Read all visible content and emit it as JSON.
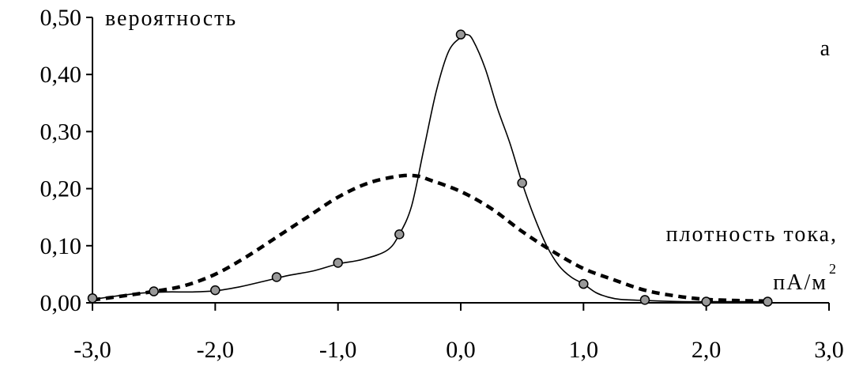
{
  "chart_data": {
    "type": "line",
    "ylabel": "вероятность",
    "xlabel_line1": "плотность тока,",
    "xlabel_unit": "пА/м",
    "xlabel_unit_sup": "2",
    "panel_label": "а",
    "xlim": [
      -3.0,
      3.0
    ],
    "ylim": [
      0.0,
      0.5
    ],
    "x_ticks": [
      -3.0,
      -2.0,
      -1.0,
      0.0,
      1.0,
      2.0,
      3.0
    ],
    "x_tick_labels": [
      "-3,0",
      "-2,0",
      "-1,0",
      "0,0",
      "1,0",
      "2,0",
      "3,0"
    ],
    "y_ticks": [
      0.0,
      0.1,
      0.2,
      0.3,
      0.4,
      0.5
    ],
    "y_tick_labels": [
      "0,00",
      "0,10",
      "0,20",
      "0,30",
      "0,40",
      "0,50"
    ],
    "grid": false,
    "series": [
      {
        "style": "solid-with-markers",
        "color": "#000000",
        "marker_color": "#999999",
        "points": [
          {
            "x": -3.0,
            "y": 0.008
          },
          {
            "x": -2.5,
            "y": 0.02
          },
          {
            "x": -2.0,
            "y": 0.022
          },
          {
            "x": -1.5,
            "y": 0.045
          },
          {
            "x": -1.0,
            "y": 0.07
          },
          {
            "x": -0.5,
            "y": 0.12
          },
          {
            "x": 0.0,
            "y": 0.47
          },
          {
            "x": 0.5,
            "y": 0.21
          },
          {
            "x": 1.0,
            "y": 0.033
          },
          {
            "x": 1.5,
            "y": 0.005
          },
          {
            "x": 2.0,
            "y": 0.002
          },
          {
            "x": 2.5,
            "y": 0.002
          }
        ],
        "curve": [
          [
            -3.0,
            0.006
          ],
          [
            -2.8,
            0.012
          ],
          [
            -2.6,
            0.017
          ],
          [
            -2.4,
            0.019
          ],
          [
            -2.2,
            0.019
          ],
          [
            -2.0,
            0.021
          ],
          [
            -1.8,
            0.028
          ],
          [
            -1.6,
            0.038
          ],
          [
            -1.4,
            0.048
          ],
          [
            -1.2,
            0.056
          ],
          [
            -1.0,
            0.068
          ],
          [
            -0.8,
            0.076
          ],
          [
            -0.6,
            0.092
          ],
          [
            -0.5,
            0.12
          ],
          [
            -0.4,
            0.17
          ],
          [
            -0.3,
            0.27
          ],
          [
            -0.2,
            0.37
          ],
          [
            -0.1,
            0.44
          ],
          [
            0.0,
            0.465
          ],
          [
            0.05,
            0.47
          ],
          [
            0.1,
            0.46
          ],
          [
            0.2,
            0.41
          ],
          [
            0.3,
            0.34
          ],
          [
            0.4,
            0.28
          ],
          [
            0.5,
            0.21
          ],
          [
            0.6,
            0.15
          ],
          [
            0.7,
            0.1
          ],
          [
            0.8,
            0.065
          ],
          [
            0.9,
            0.045
          ],
          [
            1.0,
            0.033
          ],
          [
            1.1,
            0.018
          ],
          [
            1.2,
            0.01
          ],
          [
            1.3,
            0.006
          ],
          [
            1.5,
            0.004
          ],
          [
            1.8,
            0.002
          ],
          [
            2.0,
            0.002
          ],
          [
            2.5,
            0.002
          ]
        ]
      },
      {
        "style": "dashed",
        "color": "#000000",
        "curve": [
          [
            -3.0,
            0.005
          ],
          [
            -2.75,
            0.012
          ],
          [
            -2.5,
            0.02
          ],
          [
            -2.25,
            0.03
          ],
          [
            -2.0,
            0.05
          ],
          [
            -1.75,
            0.08
          ],
          [
            -1.5,
            0.115
          ],
          [
            -1.25,
            0.15
          ],
          [
            -1.0,
            0.185
          ],
          [
            -0.75,
            0.21
          ],
          [
            -0.5,
            0.222
          ],
          [
            -0.35,
            0.222
          ],
          [
            -0.25,
            0.215
          ],
          [
            0.0,
            0.195
          ],
          [
            0.25,
            0.165
          ],
          [
            0.5,
            0.125
          ],
          [
            0.75,
            0.09
          ],
          [
            1.0,
            0.06
          ],
          [
            1.25,
            0.04
          ],
          [
            1.5,
            0.022
          ],
          [
            1.75,
            0.012
          ],
          [
            2.0,
            0.006
          ],
          [
            2.25,
            0.004
          ],
          [
            2.5,
            0.003
          ]
        ]
      }
    ]
  }
}
